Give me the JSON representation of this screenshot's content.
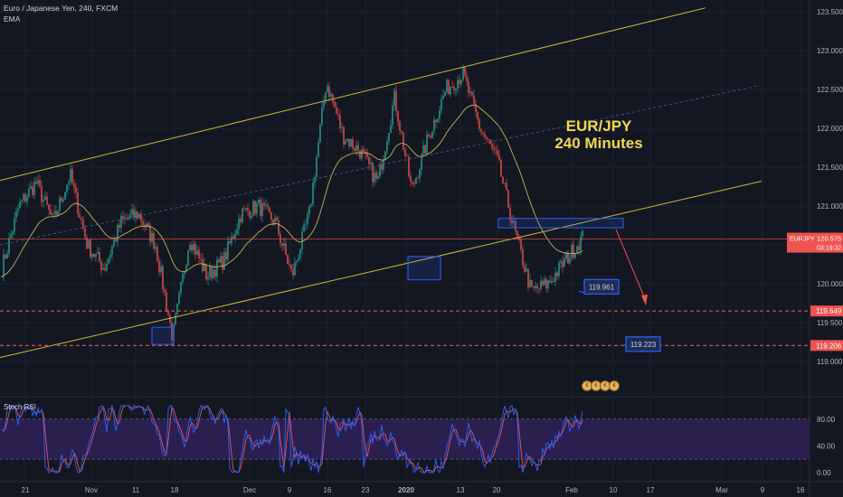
{
  "header": {
    "symbol_line": "Euro / Japanese Yen, 240, FXCM",
    "indicator": "EMA",
    "pane2_label": "Stoch RSI"
  },
  "annotation": {
    "line1": "EUR/JPY",
    "line2": "240 Minutes"
  },
  "colors": {
    "background": "#131722",
    "bull": "#26a69a",
    "bear": "#ef5350",
    "channel": "#d4b83c",
    "ema": "#c9b45a",
    "box": "#2962ff",
    "stoch_k": "#2962ff",
    "stoch_d": "#ef5350",
    "stoch_band": "#2a1f4f"
  },
  "chart_data": [
    {
      "type": "candlestick",
      "x_axis": {
        "labels": [
          "21",
          "Nov",
          "11",
          "18",
          "Dec",
          "9",
          "16",
          "23",
          "2020",
          "13",
          "20",
          "Feb",
          "10",
          "17",
          "Mar",
          "9",
          "16"
        ]
      },
      "y_axis": {
        "ticks": [
          119.0,
          119.5,
          120.0,
          120.5,
          121.0,
          121.5,
          122.0,
          122.5,
          123.0,
          123.5
        ],
        "range": [
          118.6,
          123.6
        ]
      },
      "last_price": {
        "symbol": "EURJPY",
        "price": "120.575",
        "countdown": "03:19:32"
      },
      "levels": [
        {
          "price": "119.649",
          "color": "#ef5350",
          "style": "dashed"
        },
        {
          "price": "119.206",
          "color": "#ef5350",
          "style": "dashed"
        }
      ],
      "callouts": [
        {
          "label": "119.961",
          "price": 119.961
        },
        {
          "label": "119.223",
          "price": 119.223
        }
      ],
      "overview_closes": [
        120.2,
        121.0,
        121.3,
        120.8,
        121.4,
        120.5,
        120.2,
        120.8,
        120.9,
        120.5,
        119.3,
        120.6,
        120.1,
        120.3,
        120.9,
        121.0,
        120.8,
        120.1,
        120.9,
        122.6,
        121.9,
        121.7,
        121.3,
        122.4,
        121.2,
        121.9,
        122.5,
        122.7,
        122.0,
        121.6,
        120.7,
        119.9,
        120.0,
        120.3,
        120.6
      ]
    },
    {
      "type": "line",
      "name": "Stoch RSI",
      "y_axis": {
        "ticks": [
          0.0,
          40.0,
          80.0
        ],
        "labels": [
          "0.00",
          "40.00",
          "80.00"
        ],
        "range": [
          -5,
          105
        ]
      },
      "band": [
        20,
        80
      ]
    }
  ]
}
